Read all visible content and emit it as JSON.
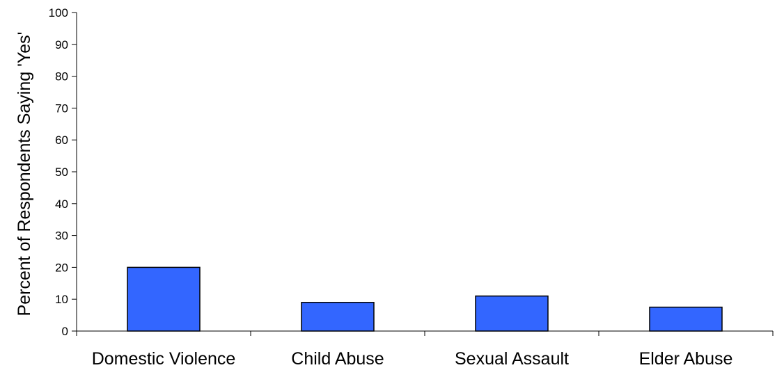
{
  "chart_data": {
    "type": "bar",
    "title": "",
    "xlabel": "",
    "ylabel": "Percent of Respondents Saying 'Yes'",
    "categories": [
      "Domestic Violence",
      "Child Abuse",
      "Sexual Assault",
      "Elder Abuse"
    ],
    "values": [
      20,
      9,
      11,
      7.5
    ],
    "ylim": [
      0,
      100
    ],
    "yticks": [
      0,
      10,
      20,
      30,
      40,
      50,
      60,
      70,
      80,
      90,
      100
    ],
    "grid": false,
    "legend": "none",
    "colors": {
      "bar_fill": "#3366ff",
      "bar_stroke": "#000000",
      "axis": "#000000"
    }
  }
}
